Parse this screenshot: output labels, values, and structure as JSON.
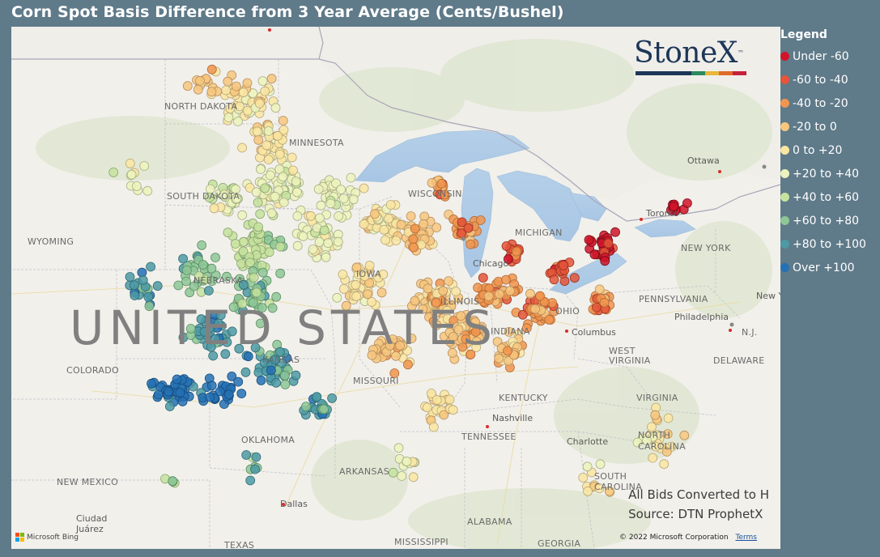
{
  "title": "Corn Spot Basis Difference from 3 Year Average (Cents/Bushel)",
  "legend": {
    "title": "Legend",
    "items": [
      {
        "label": "Under -60",
        "color": "#d0152a"
      },
      {
        "label": "-60 to -40",
        "color": "#e4553a"
      },
      {
        "label": "-40 to -20",
        "color": "#f0954f"
      },
      {
        "label": "-20 to 0",
        "color": "#f7c77e"
      },
      {
        "label": "0 to +20",
        "color": "#fae6a2"
      },
      {
        "label": "+20 to +40",
        "color": "#edf3bc"
      },
      {
        "label": "+40 to +60",
        "color": "#c6e29e"
      },
      {
        "label": "+60 to +80",
        "color": "#8ec796"
      },
      {
        "label": "+80 to +100",
        "color": "#4d9aa4"
      },
      {
        "label": "Over +100",
        "color": "#2471b4"
      }
    ]
  },
  "logo": {
    "text": "StoneX",
    "tm": "™",
    "bar_colors": [
      "#1d3658",
      "#2b8a5e",
      "#e9b63a",
      "#e06b2a",
      "#c8203a"
    ]
  },
  "map": {
    "country_label": "UNITED STATES",
    "states": [
      "NORTH DAKOTA",
      "SOUTH DAKOTA",
      "MINNESOTA",
      "WISCONSIN",
      "WYOMING",
      "NEBRASKA",
      "IOWA",
      "COLORADO",
      "KANSAS",
      "MISSOURI",
      "ILLINOIS",
      "INDIANA",
      "OHIO",
      "MICHIGAN",
      "KENTUCKY",
      "WEST VIRGINIA",
      "VIRGINIA",
      "PENNSYLVANIA",
      "NEW YORK",
      "OKLAHOMA",
      "ARKANSAS",
      "TENNESSEE",
      "NORTH CAROLINA",
      "SOUTH CAROLINA",
      "NEW MEXICO",
      "TEXAS",
      "MISSISSIPPI",
      "ALABAMA",
      "GEORGIA",
      "DELAWARE",
      "N.J."
    ],
    "cities": [
      "Ottawa",
      "Toronto",
      "Chicago",
      "Columbus",
      "Philadelphia",
      "Nashville",
      "Charlotte",
      "Dallas",
      "Ciudad Juárez",
      "New York"
    ],
    "note_line1": "All Bids Converted to H",
    "note_line2": "Source: DTN ProphetX",
    "copyright": "© 2022 Microsoft Corporation",
    "terms": "Terms",
    "bing": "Microsoft Bing"
  }
}
